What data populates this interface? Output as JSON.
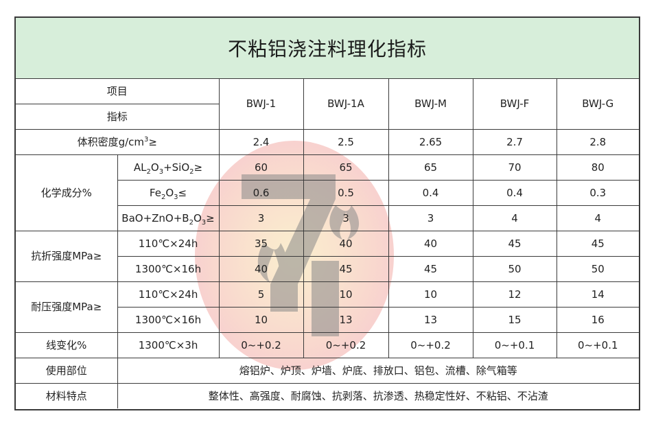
{
  "title": "不粘铝浇注料理化指标",
  "header": {
    "item_label": "项目",
    "index_label": "指标",
    "grades": [
      "BWJ-1",
      "BWJ-1A",
      "BWJ-M",
      "BWJ-F",
      "BWJ-G"
    ]
  },
  "bulk_density": {
    "label": "体积密度g/cm",
    "label_sup": "3",
    "label_tail": "≥",
    "values": [
      "2.4",
      "2.5",
      "2.65",
      "2.7",
      "2.8"
    ]
  },
  "chem": {
    "group_label": "化学成分%",
    "al2o3": {
      "values": [
        "60",
        "65",
        "65",
        "70",
        "80"
      ]
    },
    "fe2o3": {
      "values": [
        "0.6",
        "0.5",
        "0.4",
        "0.4",
        "0.3"
      ]
    },
    "bao": {
      "values": [
        "3",
        "3",
        "3",
        "4",
        "4"
      ]
    }
  },
  "flexural": {
    "group_label": "抗折强度MPa≥",
    "r1": {
      "label": "110℃×24h",
      "values": [
        "35",
        "40",
        "40",
        "45",
        "45"
      ]
    },
    "r2": {
      "label": "1300℃×16h",
      "values": [
        "40",
        "45",
        "45",
        "50",
        "50"
      ]
    }
  },
  "compressive": {
    "group_label": "耐压强度MPa≥",
    "r1": {
      "label": "110℃×24h",
      "values": [
        "5",
        "10",
        "10",
        "12",
        "14"
      ]
    },
    "r2": {
      "label": "1300℃×16h",
      "values": [
        "10",
        "13",
        "13",
        "15",
        "16"
      ]
    }
  },
  "linear": {
    "group_label": "线变化%",
    "label": "1300℃×3h",
    "values": [
      "0~+0.2",
      "0~+0.2",
      "0~+0.2",
      "0~+0.1",
      "0~+0.1"
    ]
  },
  "usage": {
    "label": "使用部位",
    "text": "熔铝炉、炉顶、炉墙、炉底、排放口、铝包、流槽、除气箱等"
  },
  "features": {
    "label": "材料特点",
    "text": "整体性、高强度、耐腐蚀、抗剥落、抗渗透、热稳定性好、不粘铝、不沾渣"
  },
  "watermark": {
    "colors": {
      "circle": "#f6c2bf",
      "circle_center": "#f7e0a8",
      "mark": "#8a8a8a"
    }
  }
}
